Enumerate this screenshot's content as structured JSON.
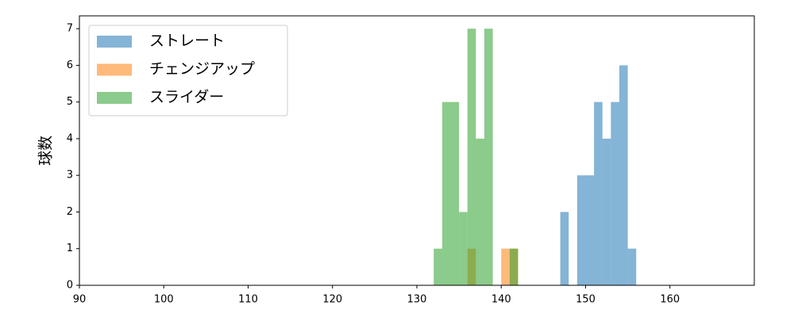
{
  "chart_data": {
    "type": "histogram",
    "ylabel": "球数",
    "xlim": [
      90,
      170
    ],
    "xticks": [
      90,
      100,
      110,
      120,
      130,
      140,
      150,
      160
    ],
    "ylim": [
      0,
      7.35
    ],
    "yticks": [
      0,
      1,
      2,
      3,
      4,
      5,
      6,
      7
    ],
    "legend": "upper left",
    "series": [
      {
        "name": "ストレート",
        "color": "#1f77b4",
        "bins": [
          147,
          148,
          149,
          150,
          151,
          152,
          153,
          154,
          155,
          156
        ],
        "values": [
          2,
          0,
          3,
          3,
          5,
          4,
          5,
          6,
          1
        ]
      },
      {
        "name": "チェンジアップ",
        "color": "#ff7f0e",
        "bins": [
          136,
          137,
          138,
          139,
          140,
          141,
          142
        ],
        "values": [
          1,
          0,
          0,
          0,
          1,
          1
        ]
      },
      {
        "name": "スライダー",
        "color": "#2ca02c",
        "bins": [
          132,
          133,
          134,
          135,
          136,
          137,
          138,
          139,
          140,
          141,
          142
        ],
        "values": [
          1,
          5,
          5,
          2,
          7,
          4,
          7,
          0,
          0,
          1
        ]
      }
    ]
  }
}
